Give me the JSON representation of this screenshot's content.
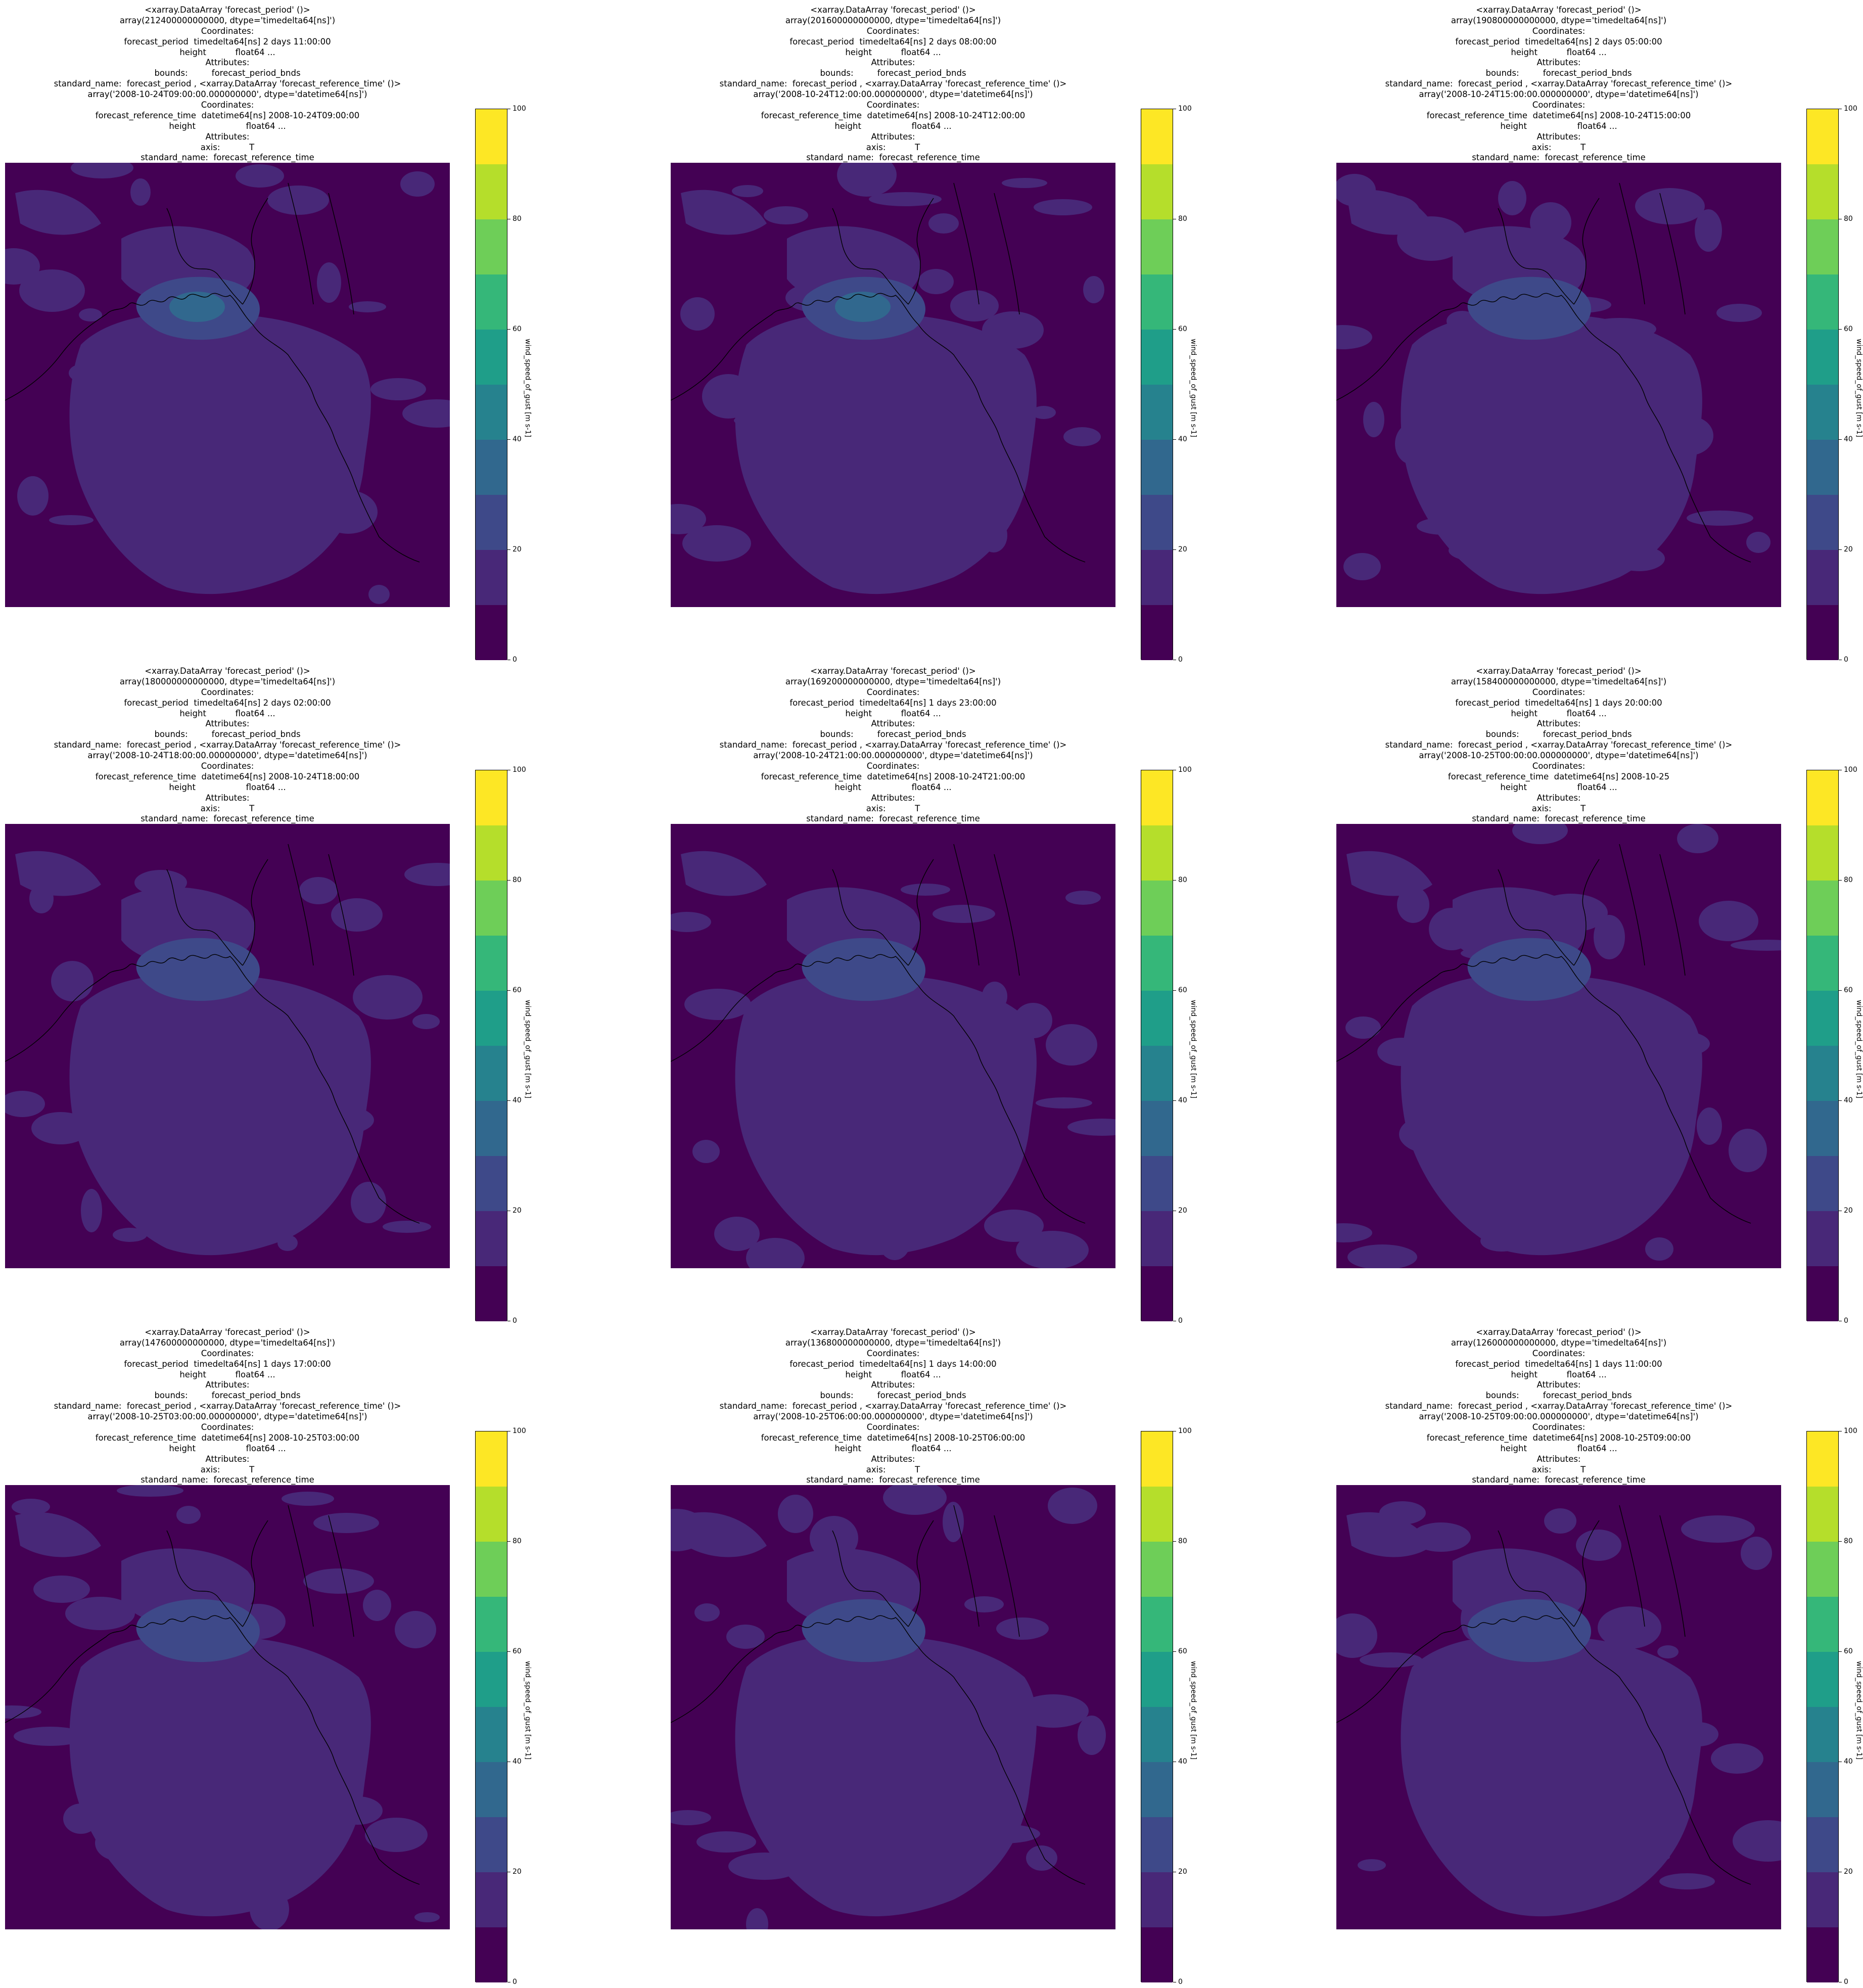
{
  "colormap": [
    "#440154",
    "#482878",
    "#3e4989",
    "#31688e",
    "#26828e",
    "#1f9e89",
    "#35b779",
    "#6ece58",
    "#b5de2b",
    "#fde725"
  ],
  "colorbar": {
    "label": "wind_speed_of_gust [m s-1]",
    "ticks": [
      "0",
      "20",
      "40",
      "60",
      "80",
      "100"
    ],
    "levels": [
      0,
      10,
      20,
      30,
      40,
      50,
      60,
      70,
      80,
      90,
      100
    ]
  },
  "panels": [
    {
      "lines": [
        "<xarray.DataArray 'forecast_period' ()>",
        "array(212400000000000, dtype='timedelta64[ns]')",
        "Coordinates:",
        "forecast_period  timedelta64[ns] 2 days 11:00:00",
        "height           float64 ...",
        "Attributes:",
        "bounds:         forecast_period_bnds",
        "standard_name:  forecast_period , <xarray.DataArray 'forecast_reference_time' ()>",
        "array('2008-10-24T09:00:00.000000000', dtype='datetime64[ns]')",
        "Coordinates:",
        "forecast_reference_time  datetime64[ns] 2008-10-24T09:00:00",
        "height                   float64 ...",
        "Attributes:",
        "axis:           T",
        "standard_name:  forecast_reference_time"
      ],
      "wind_core_class": 4
    },
    {
      "lines": [
        "<xarray.DataArray 'forecast_period' ()>",
        "array(201600000000000, dtype='timedelta64[ns]')",
        "Coordinates:",
        "forecast_period  timedelta64[ns] 2 days 08:00:00",
        "height           float64 ...",
        "Attributes:",
        "bounds:         forecast_period_bnds",
        "standard_name:  forecast_period , <xarray.DataArray 'forecast_reference_time' ()>",
        "array('2008-10-24T12:00:00.000000000', dtype='datetime64[ns]')",
        "Coordinates:",
        "forecast_reference_time  datetime64[ns] 2008-10-24T12:00:00",
        "height                   float64 ...",
        "Attributes:",
        "axis:           T",
        "standard_name:  forecast_reference_time"
      ],
      "wind_core_class": 4
    },
    {
      "lines": [
        "<xarray.DataArray 'forecast_period' ()>",
        "array(190800000000000, dtype='timedelta64[ns]')",
        "Coordinates:",
        "forecast_period  timedelta64[ns] 2 days 05:00:00",
        "height           float64 ...",
        "Attributes:",
        "bounds:         forecast_period_bnds",
        "standard_name:  forecast_period , <xarray.DataArray 'forecast_reference_time' ()>",
        "array('2008-10-24T15:00:00.000000000', dtype='datetime64[ns]')",
        "Coordinates:",
        "forecast_reference_time  datetime64[ns] 2008-10-24T15:00:00",
        "height                   float64 ...",
        "Attributes:",
        "axis:           T",
        "standard_name:  forecast_reference_time"
      ],
      "wind_core_class": 3
    },
    {
      "lines": [
        "<xarray.DataArray 'forecast_period' ()>",
        "array(180000000000000, dtype='timedelta64[ns]')",
        "Coordinates:",
        "forecast_period  timedelta64[ns] 2 days 02:00:00",
        "height           float64 ...",
        "Attributes:",
        "bounds:         forecast_period_bnds",
        "standard_name:  forecast_period , <xarray.DataArray 'forecast_reference_time' ()>",
        "array('2008-10-24T18:00:00.000000000', dtype='datetime64[ns]')",
        "Coordinates:",
        "forecast_reference_time  datetime64[ns] 2008-10-24T18:00:00",
        "height                   float64 ...",
        "Attributes:",
        "axis:           T",
        "standard_name:  forecast_reference_time"
      ],
      "wind_core_class": 3
    },
    {
      "lines": [
        "<xarray.DataArray 'forecast_period' ()>",
        "array(169200000000000, dtype='timedelta64[ns]')",
        "Coordinates:",
        "forecast_period  timedelta64[ns] 1 days 23:00:00",
        "height           float64 ...",
        "Attributes:",
        "bounds:         forecast_period_bnds",
        "standard_name:  forecast_period , <xarray.DataArray 'forecast_reference_time' ()>",
        "array('2008-10-24T21:00:00.000000000', dtype='datetime64[ns]')",
        "Coordinates:",
        "forecast_reference_time  datetime64[ns] 2008-10-24T21:00:00",
        "height                   float64 ...",
        "Attributes:",
        "axis:           T",
        "standard_name:  forecast_reference_time"
      ],
      "wind_core_class": 3
    },
    {
      "lines": [
        "<xarray.DataArray 'forecast_period' ()>",
        "array(158400000000000, dtype='timedelta64[ns]')",
        "Coordinates:",
        "forecast_period  timedelta64[ns] 1 days 20:00:00",
        "height           float64 ...",
        "Attributes:",
        "bounds:         forecast_period_bnds",
        "standard_name:  forecast_period , <xarray.DataArray 'forecast_reference_time' ()>",
        "array('2008-10-25T00:00:00.000000000', dtype='datetime64[ns]')",
        "Coordinates:",
        "forecast_reference_time  datetime64[ns] 2008-10-25",
        "height                   float64 ...",
        "Attributes:",
        "axis:           T",
        "standard_name:  forecast_reference_time"
      ],
      "wind_core_class": 3
    },
    {
      "lines": [
        "<xarray.DataArray 'forecast_period' ()>",
        "array(147600000000000, dtype='timedelta64[ns]')",
        "Coordinates:",
        "forecast_period  timedelta64[ns] 1 days 17:00:00",
        "height           float64 ...",
        "Attributes:",
        "bounds:         forecast_period_bnds",
        "standard_name:  forecast_period , <xarray.DataArray 'forecast_reference_time' ()>",
        "array('2008-10-25T03:00:00.000000000', dtype='datetime64[ns]')",
        "Coordinates:",
        "forecast_reference_time  datetime64[ns] 2008-10-25T03:00:00",
        "height                   float64 ...",
        "Attributes:",
        "axis:           T",
        "standard_name:  forecast_reference_time"
      ],
      "wind_core_class": 3
    },
    {
      "lines": [
        "<xarray.DataArray 'forecast_period' ()>",
        "array(136800000000000, dtype='timedelta64[ns]')",
        "Coordinates:",
        "forecast_period  timedelta64[ns] 1 days 14:00:00",
        "height           float64 ...",
        "Attributes:",
        "bounds:         forecast_period_bnds",
        "standard_name:  forecast_period , <xarray.DataArray 'forecast_reference_time' ()>",
        "array('2008-10-25T06:00:00.000000000', dtype='datetime64[ns]')",
        "Coordinates:",
        "forecast_reference_time  datetime64[ns] 2008-10-25T06:00:00",
        "height                   float64 ...",
        "Attributes:",
        "axis:           T",
        "standard_name:  forecast_reference_time"
      ],
      "wind_core_class": 3
    },
    {
      "lines": [
        "<xarray.DataArray 'forecast_period' ()>",
        "array(126000000000000, dtype='timedelta64[ns]')",
        "Coordinates:",
        "forecast_period  timedelta64[ns] 1 days 11:00:00",
        "height           float64 ...",
        "Attributes:",
        "bounds:         forecast_period_bnds",
        "standard_name:  forecast_period , <xarray.DataArray 'forecast_reference_time' ()>",
        "array('2008-10-25T09:00:00.000000000', dtype='datetime64[ns]')",
        "Coordinates:",
        "forecast_reference_time  datetime64[ns] 2008-10-25T09:00:00",
        "height                   float64 ...",
        "Attributes:",
        "axis:           T",
        "standard_name:  forecast_reference_time"
      ],
      "wind_core_class": 3
    }
  ]
}
